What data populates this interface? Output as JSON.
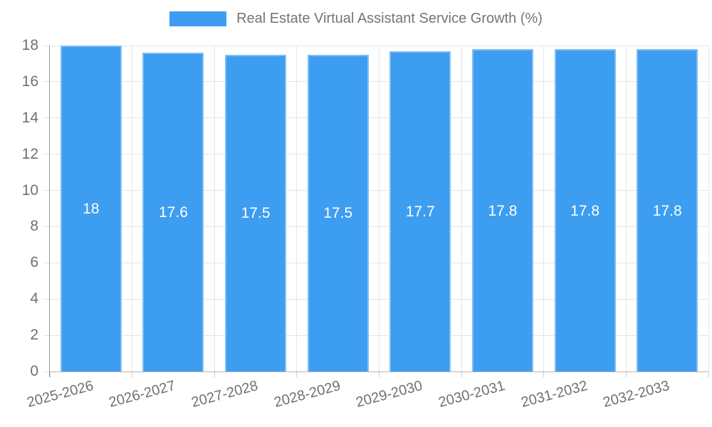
{
  "chart_data": {
    "type": "bar",
    "title": "Real Estate Virtual Assistant Service Growth (%)",
    "categories": [
      "2025-2026",
      "2026-2027",
      "2027-2028",
      "2028-2029",
      "2029-2030",
      "2030-2031",
      "2031-2032",
      "2032-2033"
    ],
    "values": [
      18,
      17.6,
      17.5,
      17.5,
      17.7,
      17.8,
      17.8,
      17.8
    ],
    "bar_labels": [
      "18",
      "17.6",
      "17.5",
      "17.5",
      "17.7",
      "17.8",
      "17.8",
      "17.8"
    ],
    "ylim": [
      0,
      18
    ],
    "yticks": [
      0,
      2,
      4,
      6,
      8,
      10,
      12,
      14,
      16,
      18
    ],
    "grid": true,
    "legend_position": "top",
    "x_label_rotation_deg": -15,
    "colors": {
      "bar": "#3d9df0",
      "bar_value_text": "#ffffff",
      "tick_text": "#707070",
      "title_text": "#757575",
      "gridline": "#e6e6e6",
      "x_tick_mark": "#cfcfcf",
      "axis_line": "#b5b5b5",
      "y_axis_line": "#9a9a9a",
      "background": "#ffffff"
    }
  }
}
